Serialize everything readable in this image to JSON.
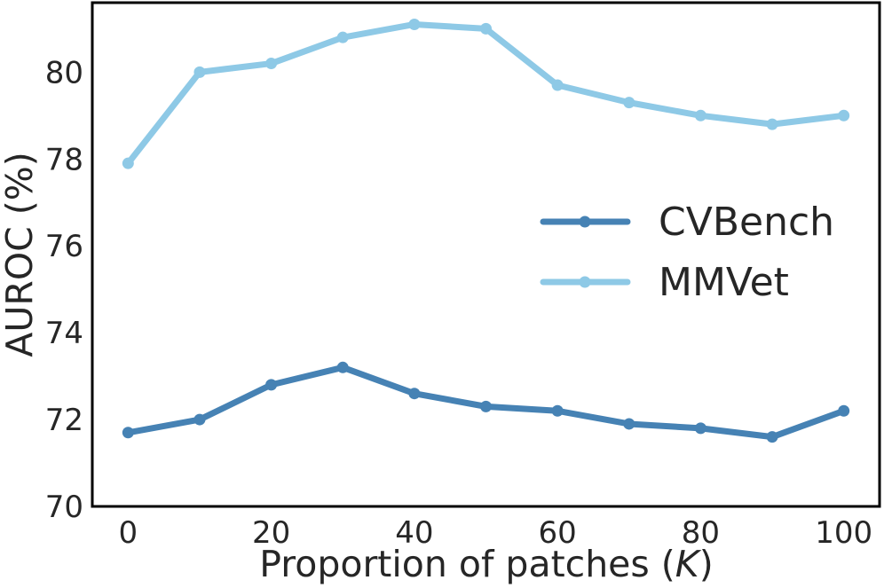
{
  "chart_data": {
    "type": "line",
    "title": "",
    "xlabel_main": "Proportion of patches (",
    "xlabel_var": "K",
    "xlabel_close": ")",
    "ylabel": "AUROC (%)",
    "x": [
      0,
      10,
      20,
      30,
      40,
      50,
      60,
      70,
      80,
      90,
      100
    ],
    "xlim": [
      -5,
      105
    ],
    "ylim": [
      70,
      81.6
    ],
    "xticks": [
      "0",
      "20",
      "40",
      "60",
      "80",
      "100"
    ],
    "xtick_values": [
      0,
      20,
      40,
      60,
      80,
      100
    ],
    "yticks": [
      "70",
      "72",
      "74",
      "76",
      "78",
      "80"
    ],
    "ytick_values": [
      70,
      72,
      74,
      76,
      78,
      80
    ],
    "legend_position": "center-right",
    "series": [
      {
        "name": "CVBench",
        "color": "#4682b4",
        "values": [
          71.7,
          72.0,
          72.8,
          73.2,
          72.6,
          72.3,
          72.2,
          71.9,
          71.8,
          71.6,
          72.2
        ]
      },
      {
        "name": "MMVet",
        "color": "#8ec9e6",
        "values": [
          77.9,
          80.0,
          80.2,
          80.8,
          81.1,
          81.0,
          79.7,
          79.3,
          79.0,
          78.8,
          79.0
        ]
      }
    ]
  }
}
